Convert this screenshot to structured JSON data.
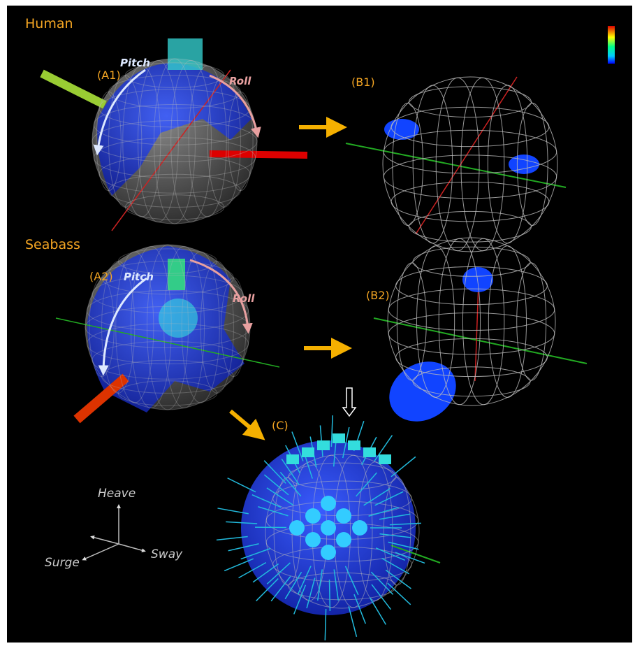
{
  "panels": {
    "human": {
      "title": "Human",
      "a_label": "(A1)",
      "pitch": "Pitch",
      "roll": "Roll",
      "b_label": "(B1)"
    },
    "seabass": {
      "title": "Seabass",
      "a_label": "(A2)",
      "pitch": "Pitch",
      "roll": "Roll",
      "b_label": "(B2)"
    },
    "c_label": "(C)"
  },
  "axes": {
    "heave": "Heave",
    "surge": "Surge",
    "sway": "Sway"
  }
}
